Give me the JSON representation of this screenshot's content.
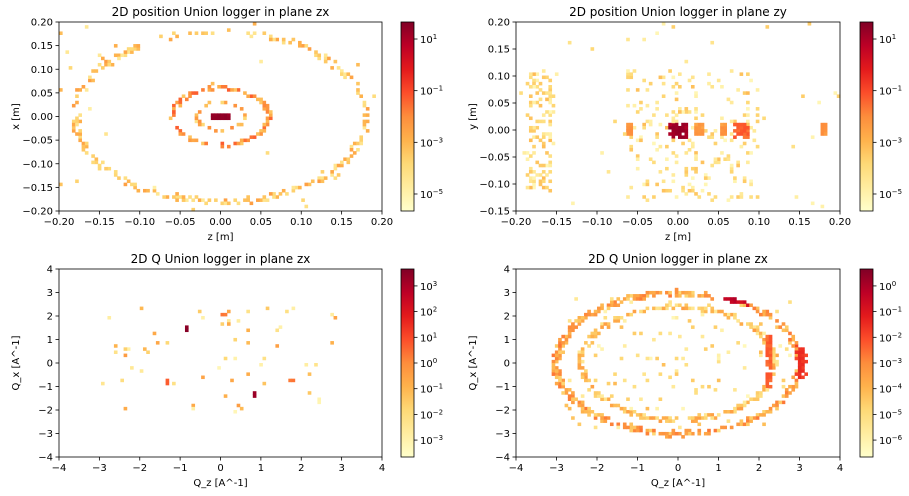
{
  "figure": {
    "background": "#ffffff"
  },
  "chart_data": [
    {
      "type": "heatmap",
      "title": "2D position Union logger in plane zx",
      "xlabel": "z [m]",
      "ylabel": "x [m]",
      "xlim": [
        -0.2,
        0.2
      ],
      "ylim": [
        -0.2,
        0.2
      ],
      "xticks": [
        "-0.20",
        "-0.15",
        "-0.10",
        "-0.05",
        "0.00",
        "0.05",
        "0.10",
        "0.15",
        "0.20"
      ],
      "yticks": [
        "-0.20",
        "-0.15",
        "-0.10",
        "-0.05",
        "0.00",
        "0.05",
        "0.10",
        "0.15",
        "0.20"
      ],
      "colorbar": {
        "scale": "log",
        "ticks": [
          "10^1",
          "10^-1",
          "10^-3",
          "10^-5"
        ]
      },
      "colormap": [
        "#ffffcc",
        "#ffeda0",
        "#fed976",
        "#feb24c",
        "#fd8d3c",
        "#fc4e2a",
        "#e31a1c",
        "#bd0026",
        "#800026"
      ],
      "features": [
        {
          "kind": "ring",
          "cx": 0,
          "cy": 0,
          "rx": 0.18,
          "ry": 0.18,
          "n": 260,
          "level": [
            0.15,
            0.45
          ],
          "hot": [
            [
              0.07,
              0.155,
              0.2,
              0.7
            ]
          ]
        },
        {
          "kind": "ring",
          "cx": 0,
          "cy": 0,
          "rx": 0.06,
          "ry": 0.06,
          "n": 120,
          "level": [
            0.3,
            0.6
          ],
          "hot": [
            [
              0.02,
              0.06,
              0.12,
              0.7
            ]
          ]
        },
        {
          "kind": "ring",
          "cx": 0,
          "cy": 0,
          "rx": 0.03,
          "ry": 0.03,
          "n": 30,
          "level": [
            0.2,
            0.5
          ]
        },
        {
          "kind": "blob",
          "x0": -0.01,
          "x1": 0.01,
          "y0": -0.006,
          "y1": 0.006,
          "level": 0.98
        },
        {
          "kind": "scatter",
          "x0": -0.2,
          "x1": 0.2,
          "y0": -0.2,
          "y1": 0.2,
          "n": 25,
          "level": [
            0.1,
            0.4
          ]
        }
      ]
    },
    {
      "type": "heatmap",
      "title": "2D position Union logger in plane zy",
      "xlabel": "z [m]",
      "ylabel": "y [m]",
      "xlim": [
        -0.2,
        0.2
      ],
      "ylim": [
        -0.15,
        0.2
      ],
      "xticks": [
        "-0.20",
        "-0.15",
        "-0.10",
        "-0.05",
        "0.00",
        "0.05",
        "0.10",
        "0.15",
        "0.20"
      ],
      "yticks": [
        "-0.15",
        "-0.10",
        "-0.05",
        "0.00",
        "0.05",
        "0.10",
        "0.15",
        "0.20"
      ],
      "colorbar": {
        "scale": "log",
        "ticks": [
          "10^1",
          "10^-1",
          "10^-3",
          "10^-5"
        ]
      },
      "colormap": [
        "#ffffcc",
        "#ffeda0",
        "#fed976",
        "#feb24c",
        "#fd8d3c",
        "#fc4e2a",
        "#e31a1c",
        "#bd0026",
        "#800026"
      ],
      "features": [
        {
          "kind": "cloud",
          "x0": -0.185,
          "x1": -0.155,
          "y0": -0.11,
          "y1": 0.11,
          "n": 130,
          "level": [
            0.05,
            0.35
          ]
        },
        {
          "kind": "cloud",
          "x0": -0.065,
          "x1": 0.1,
          "y0": -0.13,
          "y1": 0.11,
          "n": 220,
          "level": [
            0.05,
            0.35
          ]
        },
        {
          "kind": "blob",
          "x0": -0.01,
          "x1": 0.01,
          "y0": -0.012,
          "y1": 0.012,
          "level": 0.97
        },
        {
          "kind": "blob",
          "x0": 0.07,
          "x1": 0.088,
          "y0": -0.012,
          "y1": 0.012,
          "level": 0.62
        },
        {
          "kind": "blob",
          "x0": 0.02,
          "x1": 0.03,
          "y0": -0.01,
          "y1": 0.01,
          "level": 0.48
        },
        {
          "kind": "blob",
          "x0": -0.062,
          "x1": -0.057,
          "y0": -0.01,
          "y1": 0.01,
          "level": 0.5
        },
        {
          "kind": "blob",
          "x0": 0.053,
          "x1": 0.06,
          "y0": -0.01,
          "y1": 0.01,
          "level": 0.5
        },
        {
          "kind": "blob",
          "x0": 0.177,
          "x1": 0.182,
          "y0": -0.01,
          "y1": 0.012,
          "level": 0.5
        },
        {
          "kind": "scatter",
          "x0": -0.2,
          "x1": 0.2,
          "y0": -0.15,
          "y1": 0.2,
          "n": 45,
          "level": [
            0.05,
            0.3
          ]
        }
      ]
    },
    {
      "type": "heatmap",
      "title": "2D Q Union logger in plane zx",
      "xlabel": "Q_z [A^-1]",
      "ylabel": "Q_x [A^-1]",
      "xlim": [
        -4,
        4
      ],
      "ylim": [
        -4,
        4
      ],
      "xticks": [
        "-4",
        "-3",
        "-2",
        "-1",
        "0",
        "1",
        "2",
        "3",
        "4"
      ],
      "yticks": [
        "-4",
        "-3",
        "-2",
        "-1",
        "0",
        "1",
        "2",
        "3",
        "4"
      ],
      "colorbar": {
        "scale": "log",
        "ticks": [
          "10^3",
          "10^2",
          "10^1",
          "10^0",
          "10^-1",
          "10^-2",
          "10^-3"
        ]
      },
      "colormap": [
        "#ffffcc",
        "#ffeda0",
        "#fed976",
        "#feb24c",
        "#fd8d3c",
        "#fc4e2a",
        "#e31a1c",
        "#bd0026",
        "#800026"
      ],
      "features": [
        {
          "kind": "scatter",
          "x0": -3,
          "x1": 3,
          "y0": -2.3,
          "y1": 2.4,
          "n": 60,
          "level": [
            0.05,
            0.45
          ]
        },
        {
          "kind": "blob",
          "x0": -0.85,
          "x1": -0.8,
          "y0": 1.4,
          "y1": 1.5,
          "level": 0.99
        },
        {
          "kind": "blob",
          "x0": 0.8,
          "x1": 0.85,
          "y0": -1.4,
          "y1": -1.3,
          "level": 0.95
        },
        {
          "kind": "blob",
          "x0": -1.35,
          "x1": -1.3,
          "y0": -0.85,
          "y1": -0.75,
          "level": 0.6
        },
        {
          "kind": "blob",
          "x0": 1.75,
          "x1": 1.8,
          "y0": -0.8,
          "y1": -0.7,
          "level": 0.55
        },
        {
          "kind": "blob",
          "x0": 0,
          "x1": 0.1,
          "y0": 2.0,
          "y1": 2.1,
          "level": 0.55
        }
      ]
    },
    {
      "type": "heatmap",
      "title": "2D Q Union logger in plane zx",
      "xlabel": "Q_z [A^-1]",
      "ylabel": "Q_x [A^-1]",
      "xlim": [
        -4,
        4
      ],
      "ylim": [
        -4,
        4
      ],
      "xticks": [
        "-4",
        "-3",
        "-2",
        "-1",
        "0",
        "1",
        "2",
        "3",
        "4"
      ],
      "yticks": [
        "-4",
        "-3",
        "-2",
        "-1",
        "0",
        "1",
        "2",
        "3",
        "4"
      ],
      "colorbar": {
        "scale": "log",
        "ticks": [
          "10^0",
          "10^-1",
          "10^-2",
          "10^-3",
          "10^-4",
          "10^-5",
          "10^-6"
        ]
      },
      "colormap": [
        "#ffffcc",
        "#ffeda0",
        "#fed976",
        "#feb24c",
        "#fd8d3c",
        "#fc4e2a",
        "#e31a1c",
        "#bd0026",
        "#800026"
      ],
      "features": [
        {
          "kind": "ring",
          "cx": 0,
          "cy": 0,
          "rx": 3.0,
          "ry": 3.0,
          "n": 420,
          "level": [
            0.25,
            0.55
          ],
          "hot": [
            [
              1.0,
              2.0,
              2.5,
              3.1,
              0.75
            ]
          ]
        },
        {
          "kind": "ring",
          "cx": 0,
          "cy": 0,
          "rx": 2.4,
          "ry": 2.4,
          "n": 260,
          "level": [
            0.15,
            0.45
          ]
        },
        {
          "kind": "cloud",
          "x0": -2.8,
          "x1": 2.8,
          "y0": -2.8,
          "y1": 2.8,
          "n": 120,
          "level": [
            0.05,
            0.35
          ]
        },
        {
          "kind": "blob",
          "x0": 2.95,
          "x1": 3.15,
          "y0": -0.6,
          "y1": 0.7,
          "level": 0.72
        },
        {
          "kind": "blob",
          "x0": 2.2,
          "x1": 2.3,
          "y0": -1.0,
          "y1": 1.2,
          "level": 0.62
        }
      ]
    }
  ]
}
